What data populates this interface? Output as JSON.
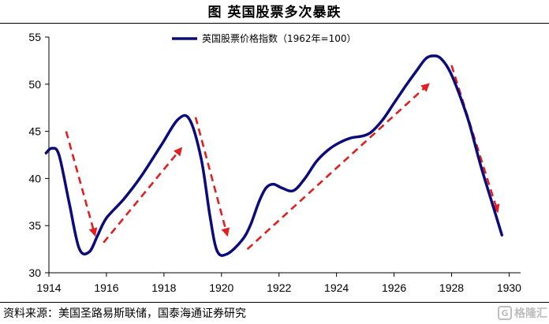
{
  "page": {
    "title": "图  英国股票多次暴跌",
    "source": "资料来源：美国圣路易斯联储，国泰海通证券研究",
    "watermark": "格隆汇"
  },
  "chart_data": {
    "type": "line",
    "title": "图  英国股票多次暴跌",
    "xlabel": "",
    "ylabel": "",
    "xlim": [
      1914,
      1930.4
    ],
    "ylim": [
      30,
      55
    ],
    "yticks": [
      30,
      35,
      40,
      45,
      50,
      55
    ],
    "xticks": [
      1914,
      1916,
      1918,
      1920,
      1922,
      1924,
      1926,
      1928,
      1930
    ],
    "grid": false,
    "legend": {
      "position": "top-center"
    },
    "series": [
      {
        "name": "英国股票价格指数（1962年=100）",
        "color": "#0b0b7a",
        "points": [
          [
            1913.9,
            42.7
          ],
          [
            1914.1,
            43.2
          ],
          [
            1914.35,
            42.5
          ],
          [
            1914.7,
            37.5
          ],
          [
            1915.05,
            32.6
          ],
          [
            1915.4,
            32.2
          ],
          [
            1915.7,
            34.0
          ],
          [
            1916.0,
            35.8
          ],
          [
            1916.6,
            37.8
          ],
          [
            1917.2,
            40.2
          ],
          [
            1917.9,
            43.5
          ],
          [
            1918.5,
            46.3
          ],
          [
            1918.9,
            46.2
          ],
          [
            1919.3,
            42.0
          ],
          [
            1919.6,
            36.0
          ],
          [
            1919.85,
            32.3
          ],
          [
            1920.2,
            32.0
          ],
          [
            1920.7,
            33.4
          ],
          [
            1921.0,
            35.0
          ],
          [
            1921.3,
            37.5
          ],
          [
            1921.55,
            39.0
          ],
          [
            1921.8,
            39.4
          ],
          [
            1922.1,
            39.0
          ],
          [
            1922.5,
            38.7
          ],
          [
            1922.9,
            40.0
          ],
          [
            1923.3,
            41.8
          ],
          [
            1923.7,
            43.0
          ],
          [
            1924.1,
            43.8
          ],
          [
            1924.5,
            44.3
          ],
          [
            1924.9,
            44.5
          ],
          [
            1925.2,
            44.9
          ],
          [
            1925.6,
            46.2
          ],
          [
            1926.0,
            48.0
          ],
          [
            1926.4,
            49.8
          ],
          [
            1926.8,
            51.5
          ],
          [
            1927.1,
            52.7
          ],
          [
            1927.35,
            53.0
          ],
          [
            1927.6,
            52.8
          ],
          [
            1927.9,
            51.6
          ],
          [
            1928.2,
            49.5
          ],
          [
            1928.6,
            46.0
          ],
          [
            1929.0,
            41.5
          ],
          [
            1929.4,
            37.5
          ],
          [
            1929.75,
            34.0
          ]
        ]
      }
    ],
    "annotations": [
      {
        "type": "arrow",
        "style": "dashed",
        "color": "#e02020",
        "from": [
          1914.6,
          45.0
        ],
        "to": [
          1915.6,
          34.0
        ]
      },
      {
        "type": "arrow",
        "style": "dashed",
        "color": "#e02020",
        "from": [
          1915.9,
          33.2
        ],
        "to": [
          1918.6,
          43.2
        ]
      },
      {
        "type": "arrow",
        "style": "dashed",
        "color": "#e02020",
        "from": [
          1919.1,
          46.5
        ],
        "to": [
          1920.2,
          34.0
        ]
      },
      {
        "type": "arrow",
        "style": "dashed",
        "color": "#e02020",
        "from": [
          1920.9,
          32.5
        ],
        "to": [
          1927.2,
          50.0
        ]
      },
      {
        "type": "arrow",
        "style": "dashed",
        "color": "#e02020",
        "from": [
          1928.0,
          52.0
        ],
        "to": [
          1929.6,
          36.5
        ]
      }
    ]
  }
}
